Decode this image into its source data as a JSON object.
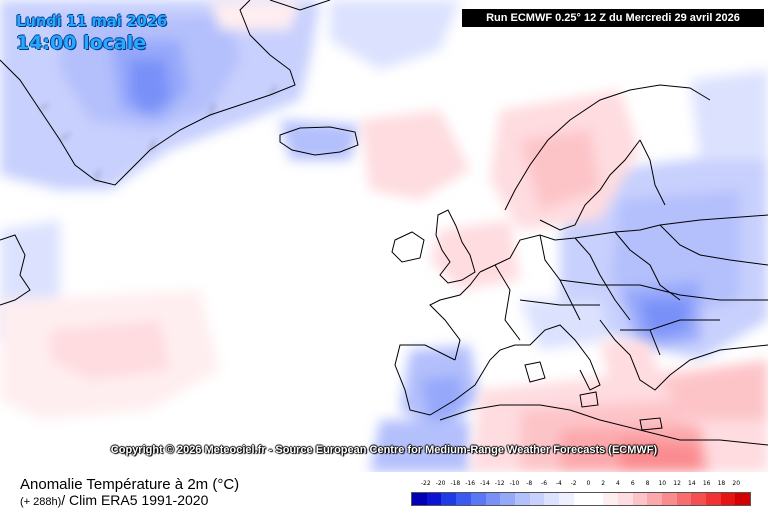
{
  "header": {
    "date": "Lundi 11 mai 2026",
    "time": "14:00 locale",
    "run_info": "Run ECMWF 0.25° 12 Z du Mercredi 29 avril 2026"
  },
  "map": {
    "copyright": "Copyright © 2026 Meteociel.fr - Source European Centre for Medium-Range Weather Forecasts (ECMWF)"
  },
  "footer": {
    "title": "Anomalie Température à 2m (°C)",
    "lead_time": "(+ 288h)",
    "clim": "/ Clim ERA5 1991-2020"
  },
  "legend": {
    "ticks": [
      "-22",
      "-20",
      "-18",
      "-16",
      "-14",
      "-12",
      "-10",
      "-8",
      "-6",
      "-4",
      "-2",
      "0",
      "2",
      "4",
      "6",
      "8",
      "10",
      "12",
      "14",
      "16",
      "18",
      "20"
    ],
    "colors": [
      "#0000b4",
      "#0a14d2",
      "#1e3ce6",
      "#3c5af0",
      "#5a78f5",
      "#7890f8",
      "#96a8fa",
      "#b4c0fc",
      "#c8d0fd",
      "#dce2fe",
      "#eef0ff",
      "#ffffff",
      "#ffffff",
      "#ffeef0",
      "#fedce0",
      "#fdc4c8",
      "#fca8ac",
      "#fa8c90",
      "#f86e70",
      "#f55050",
      "#f03232",
      "#e61414",
      "#d20000"
    ]
  }
}
